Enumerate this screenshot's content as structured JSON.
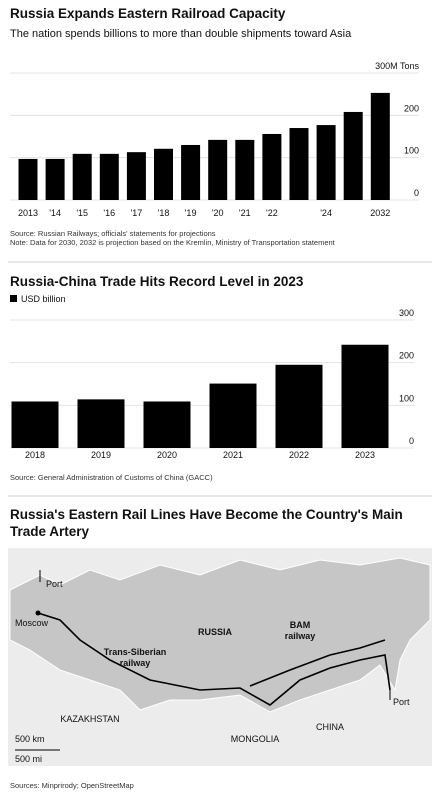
{
  "chart_data": [
    {
      "type": "bar",
      "title": "Russia Expands Eastern Railroad Capacity",
      "subtitle": "The nation spends billions to more than double shipments toward Asia",
      "categories": [
        "2013",
        "'14",
        "'15",
        "'16",
        "'17",
        "'18",
        "'19",
        "'20",
        "'21",
        "'22",
        null,
        "'24",
        null,
        "2032"
      ],
      "values": [
        97,
        97,
        109,
        109,
        113,
        121,
        130,
        142,
        142,
        156,
        170,
        177,
        208,
        253
      ],
      "color": "#000000",
      "ylim": [
        0,
        300
      ],
      "yticks": [
        0,
        100,
        200,
        {
          "value": 300,
          "label": "300M Tons"
        }
      ],
      "grid": true,
      "source": "Source: Russian Railways; officials' statements for projections",
      "note": "Note: Data for 2030, 2032 is projection based on the Kremlin, Ministry of Transportation statement"
    },
    {
      "type": "bar",
      "title": "Russia-China Trade Hits Record Level in 2023",
      "legend": "USD billion",
      "categories": [
        "2018",
        "2019",
        "2020",
        "2021",
        "2022",
        "2023"
      ],
      "values": [
        109,
        114,
        109,
        151,
        195,
        242
      ],
      "color": "#000000",
      "ylim": [
        0,
        300
      ],
      "yticks": [
        0,
        100,
        200,
        300
      ],
      "grid": true,
      "source": "Source: General Administration of Customs of China (GACC)"
    }
  ],
  "map": {
    "title_lines": [
      "Russia's Eastern Rail Lines Have Become the Country's Main",
      "Trade Artery"
    ],
    "labels": [
      {
        "lines": [
          "Port"
        ]
      },
      {
        "lines": [
          "Moscow"
        ]
      },
      {
        "lines": [
          "RUSSIA"
        ]
      },
      {
        "lines": [
          "Trans-Siberian",
          "railway"
        ]
      },
      {
        "lines": [
          "BAM",
          "railway"
        ]
      },
      {
        "lines": [
          "Port"
        ]
      },
      {
        "lines": [
          "KAZAKHSTAN"
        ]
      },
      {
        "lines": [
          "MONGOLIA"
        ]
      },
      {
        "lines": [
          "CHINA"
        ]
      },
      {
        "lines": [
          "500 km"
        ]
      },
      {
        "lines": [
          "500 mi"
        ]
      }
    ],
    "source": "Sources: Minprirody; OpenStreetMap"
  }
}
